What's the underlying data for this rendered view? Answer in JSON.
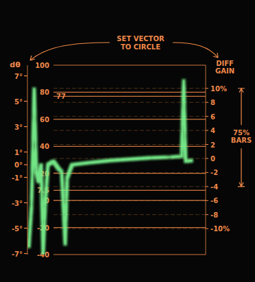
{
  "chart_data": [
    {
      "type": "line",
      "title": "SET VECTOR TO CIRCLE",
      "y2_label": "DIFF GAIN",
      "color": "#f0884a",
      "x": [
        0.8,
        2.3,
        3.8,
        5.0,
        6.2,
        7.7,
        8.8,
        10.0,
        11.5,
        14.6,
        17.3,
        19.2,
        21.2,
        22.3,
        25.0,
        34.6,
        46.2,
        57.7,
        69.2,
        80.8,
        86.5,
        87.7,
        88.8,
        92.3
      ],
      "xlim": [
        0,
        100
      ],
      "ylim": [
        -40,
        100
      ],
      "yticks": [
        100,
        80,
        77,
        60,
        40,
        20,
        7.5,
        0,
        -20,
        -40
      ],
      "y2lim": [
        -13.7,
        13.3
      ],
      "y2ticks": [
        {
          "value": 10,
          "label": "10%"
        },
        8,
        6,
        4,
        2,
        0,
        -2,
        -4,
        -6,
        -8,
        {
          "value": -10,
          "label": "-10%"
        }
      ],
      "series": [
        {
          "color": "#78f08c",
          "axis": "y2",
          "values": [
            -12.6,
            -6.8,
            9.9,
            -1.9,
            -3.3,
            -0.9,
            -13.6,
            -6.8,
            -0.9,
            -0.4,
            -1.4,
            -1.9,
            -12.2,
            -2.8,
            -0.9,
            -0.6,
            -0.3,
            -0.1,
            0.1,
            0.2,
            0.3,
            11.1,
            -0.4,
            -0.3
          ]
        }
      ],
      "annotations": [
        {
          "text": "75% BARS",
          "axis": "y2",
          "from": 10,
          "to": -4
        }
      ],
      "grid": true,
      "tick_labels": "y"
    },
    {
      "type": "axis",
      "y_label": "dθ",
      "color": "#f0884a",
      "ylim": [
        -7.08,
        7.84
      ],
      "yticks": [
        {
          "value": 7,
          "label": "7°"
        },
        {
          "value": 5,
          "label": "5°"
        },
        {
          "value": 3,
          "label": "3°"
        },
        {
          "value": 1,
          "label": "1°"
        },
        {
          "value": 0,
          "label": "0°"
        },
        {
          "value": -1,
          "label": "-1°"
        },
        {
          "value": -3,
          "label": "-3°"
        },
        {
          "value": -5,
          "label": "-5°"
        },
        {
          "value": -7,
          "label": "-7°"
        }
      ],
      "grid": false,
      "tick_labels": "y"
    }
  ]
}
